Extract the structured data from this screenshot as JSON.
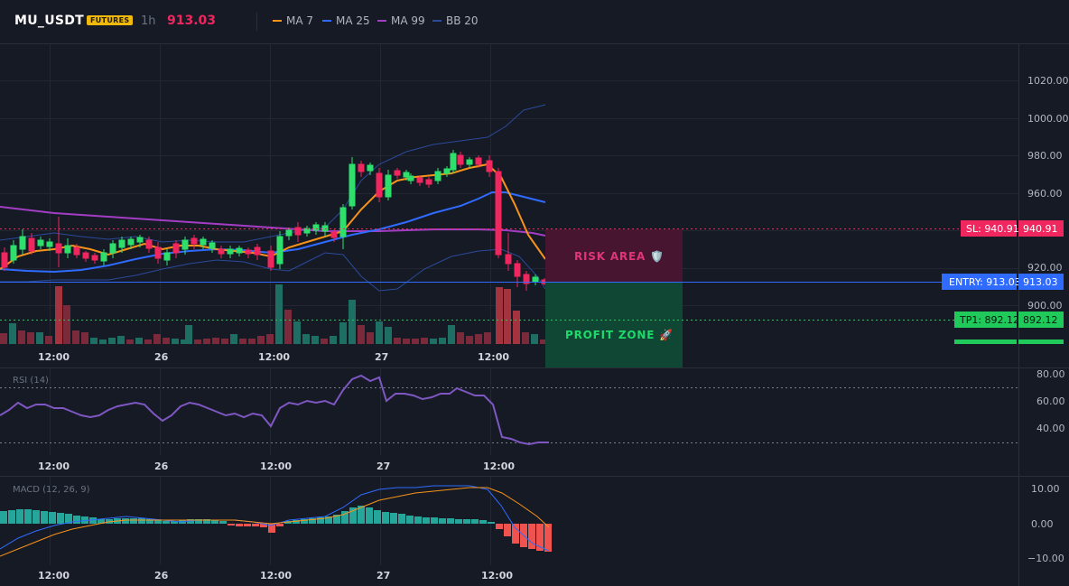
{
  "header": {
    "symbol": "MU_USDT",
    "badge": "FUTURES",
    "timeframe": "1h",
    "last_price": "913.03",
    "legend": [
      {
        "label": "MA 7",
        "color": "#f7931a"
      },
      {
        "label": "MA 25",
        "color": "#2f6bff"
      },
      {
        "label": "MA 99",
        "color": "#a33dc4"
      },
      {
        "label": "BB 20",
        "color": "#2a4a9a"
      }
    ]
  },
  "main": {
    "price_ticks": [
      "1020.00",
      "1000.00",
      "980.00",
      "960.00",
      "920.00",
      "900.00"
    ],
    "time_ticks": [
      "12:00",
      "26",
      "12:00",
      "27",
      "12:00"
    ],
    "sl_label": "SL: 940.91",
    "sl_value": "940.91",
    "entry_label": "ENTRY: 913.03",
    "entry_value": "913.03",
    "tp1_label": "TP1: 892.12",
    "tp1_value": "892.12",
    "risk_area": "RISK AREA 🛡️",
    "profit_zone": "PROFIT ZONE 🚀",
    "colors": {
      "up": "#2ee06b",
      "down": "#f0265f",
      "sl": "#f0265f",
      "entry": "#2f6bff",
      "tp": "#1fc95a"
    }
  },
  "rsi": {
    "label": "RSI (14)",
    "ticks": [
      "80.00",
      "60.00",
      "40.00"
    ],
    "time_ticks": [
      "12:00",
      "26",
      "12:00",
      "27",
      "12:00"
    ]
  },
  "macd": {
    "label": "MACD (12, 26, 9)",
    "ticks": [
      "10.00",
      "0.00",
      "−10.00"
    ],
    "time_ticks": [
      "12:00",
      "26",
      "12:00",
      "27",
      "12:00"
    ]
  }
}
